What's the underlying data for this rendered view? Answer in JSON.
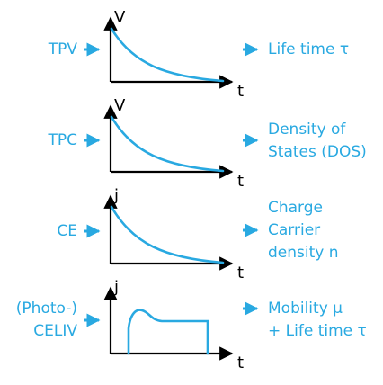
{
  "colors": {
    "accent": "#29a9e1",
    "axis": "#000000"
  },
  "rows": [
    {
      "technique": [
        "TPV"
      ],
      "y_axis": "V",
      "x_axis": "t",
      "curve": "decay",
      "result": [
        "Life time τ"
      ]
    },
    {
      "technique": [
        "TPC"
      ],
      "y_axis": "V",
      "x_axis": "t",
      "curve": "decay",
      "result": [
        "Density of",
        "States (DOS)"
      ]
    },
    {
      "technique": [
        "CE"
      ],
      "y_axis": "j",
      "x_axis": "t",
      "curve": "decay",
      "result": [
        "Charge",
        "Carrier",
        "density n"
      ]
    },
    {
      "technique": [
        "(Photo-)",
        "CELIV"
      ],
      "y_axis": "j",
      "x_axis": "t",
      "curve": "celiv",
      "result": [
        "Mobility μ",
        "+ Life time τ"
      ]
    }
  ]
}
